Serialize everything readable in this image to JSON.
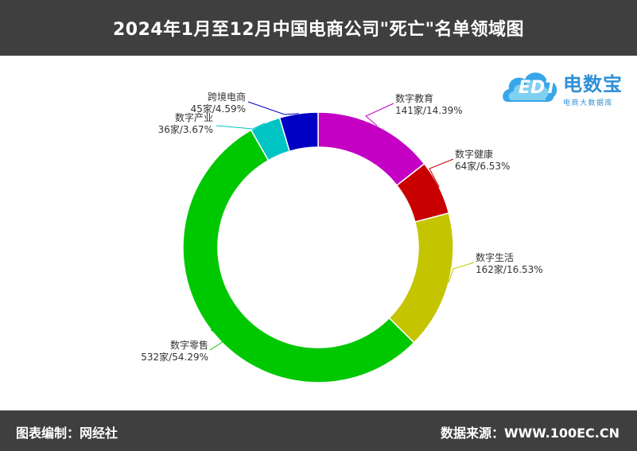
{
  "header": {
    "title": "2024年1月至12月中国电商公司\"死亡\"名单领域图"
  },
  "footer": {
    "left": "图表编制：网经社",
    "right": "数据来源：WWW.100EC.CN"
  },
  "logo": {
    "name": "电数宝",
    "subtitle": "电商大数据库",
    "mark": "EDT"
  },
  "chart_data": {
    "type": "pie",
    "donut": true,
    "title": "",
    "legend": "none",
    "slices": [
      {
        "name": "数字教育",
        "count": 141,
        "percent": 14.39,
        "label": "141家/14.39%",
        "color": "#c400c4"
      },
      {
        "name": "数字健康",
        "count": 64,
        "percent": 6.53,
        "label": "64家/6.53%",
        "color": "#c80000"
      },
      {
        "name": "数字生活",
        "count": 162,
        "percent": 16.53,
        "label": "162家/16.53%",
        "color": "#c4c400"
      },
      {
        "name": "数字零售",
        "count": 532,
        "percent": 54.29,
        "label": "532家/54.29%",
        "color": "#00c800"
      },
      {
        "name": "数字产业",
        "count": 36,
        "percent": 3.67,
        "label": "36家/3.67%",
        "color": "#00c4c4"
      },
      {
        "name": "跨境电商",
        "count": 45,
        "percent": 4.59,
        "label": "45家/4.59%",
        "color": "#0000c4"
      }
    ]
  }
}
